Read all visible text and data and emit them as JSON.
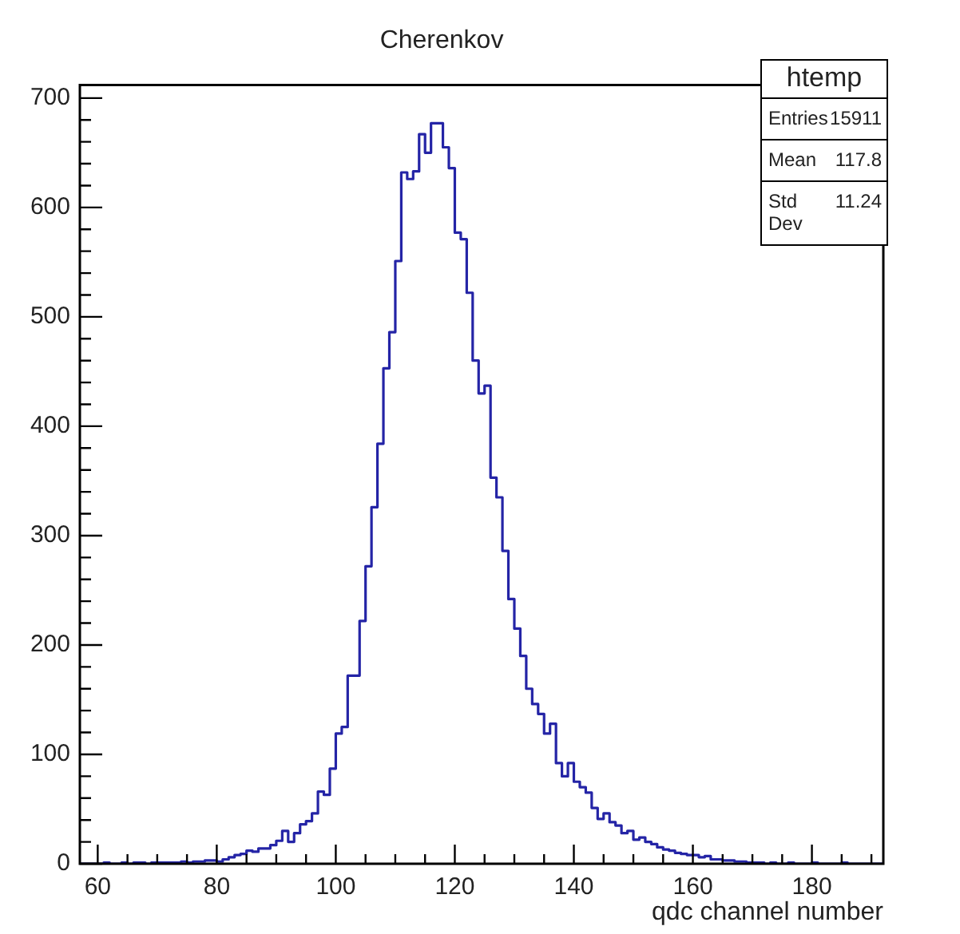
{
  "chart_data": {
    "type": "histogram",
    "title": "Cherenkov",
    "xlabel": "qdc channel number",
    "bins": [
      57,
      58,
      59,
      60,
      61,
      62,
      63,
      64,
      65,
      66,
      67,
      68,
      69,
      70,
      71,
      72,
      73,
      74,
      75,
      76,
      77,
      78,
      79,
      80,
      81,
      82,
      83,
      84,
      85,
      86,
      87,
      88,
      89,
      90,
      91,
      92,
      93,
      94,
      95,
      96,
      97,
      98,
      99,
      100,
      101,
      102,
      103,
      104,
      105,
      106,
      107,
      108,
      109,
      110,
      111,
      112,
      113,
      114,
      115,
      116,
      117,
      118,
      119,
      120,
      121,
      122,
      123,
      124,
      125,
      126,
      127,
      128,
      129,
      130,
      131,
      132,
      133,
      134,
      135,
      136,
      137,
      138,
      139,
      140,
      141,
      142,
      143,
      144,
      145,
      146,
      147,
      148,
      149,
      150,
      151,
      152,
      153,
      154,
      155,
      156,
      157,
      158,
      159,
      160,
      161,
      162,
      163,
      164,
      165,
      166,
      167,
      168,
      169,
      170,
      171,
      172,
      173,
      174,
      175,
      176,
      177,
      178,
      179,
      180,
      181,
      182,
      183,
      184,
      185,
      186,
      187,
      188,
      189,
      190,
      191,
      192
    ],
    "values": [
      0,
      0,
      0,
      0,
      1,
      0,
      0,
      1,
      0,
      1,
      1,
      0,
      1,
      1,
      1,
      1,
      1,
      2,
      1,
      2,
      2,
      3,
      3,
      2,
      4,
      6,
      8,
      9,
      12,
      11,
      14,
      14,
      17,
      21,
      30,
      20,
      28,
      36,
      39,
      46,
      66,
      63,
      87,
      119,
      125,
      172,
      172,
      222,
      272,
      326,
      384,
      453,
      486,
      551,
      632,
      626,
      633,
      667,
      650,
      677,
      677,
      655,
      636,
      577,
      571,
      522,
      460,
      430,
      437,
      353,
      335,
      286,
      242,
      215,
      190,
      160,
      146,
      137,
      119,
      128,
      92,
      80,
      92,
      75,
      70,
      65,
      51,
      41,
      46,
      38,
      35,
      28,
      30,
      22,
      24,
      20,
      18,
      15,
      13,
      12,
      10,
      9,
      8,
      8,
      6,
      7,
      4,
      4,
      3,
      3,
      2,
      2,
      1,
      1,
      1,
      0,
      1,
      0,
      0,
      1,
      0,
      0,
      0,
      1,
      0,
      0,
      0,
      0,
      1,
      0,
      0,
      0,
      0,
      0,
      0
    ],
    "color": "#2424a6",
    "xlim": [
      57,
      192
    ],
    "xticks": [
      60,
      {
        "value": 65,
        "label": null
      },
      {
        "value": 70,
        "label": null
      },
      {
        "value": 75,
        "label": null
      },
      80,
      {
        "value": 85,
        "label": null
      },
      {
        "value": 90,
        "label": null
      },
      {
        "value": 95,
        "label": null
      },
      100,
      {
        "value": 105,
        "label": null
      },
      {
        "value": 110,
        "label": null
      },
      {
        "value": 115,
        "label": null
      },
      120,
      {
        "value": 125,
        "label": null
      },
      {
        "value": 130,
        "label": null
      },
      {
        "value": 135,
        "label": null
      },
      140,
      {
        "value": 145,
        "label": null
      },
      {
        "value": 150,
        "label": null
      },
      {
        "value": 155,
        "label": null
      },
      160,
      {
        "value": 165,
        "label": null
      },
      {
        "value": 170,
        "label": null
      },
      {
        "value": 175,
        "label": null
      },
      180,
      {
        "value": 185,
        "label": null
      },
      {
        "value": 190,
        "label": null
      }
    ],
    "ylim": [
      0,
      712
    ],
    "yticks": [
      0,
      {
        "value": 20,
        "label": null
      },
      {
        "value": 40,
        "label": null
      },
      {
        "value": 60,
        "label": null
      },
      {
        "value": 80,
        "label": null
      },
      100,
      {
        "value": 120,
        "label": null
      },
      {
        "value": 140,
        "label": null
      },
      {
        "value": 160,
        "label": null
      },
      {
        "value": 180,
        "label": null
      },
      200,
      {
        "value": 220,
        "label": null
      },
      {
        "value": 240,
        "label": null
      },
      {
        "value": 260,
        "label": null
      },
      {
        "value": 280,
        "label": null
      },
      300,
      {
        "value": 320,
        "label": null
      },
      {
        "value": 340,
        "label": null
      },
      {
        "value": 360,
        "label": null
      },
      {
        "value": 380,
        "label": null
      },
      400,
      {
        "value": 420,
        "label": null
      },
      {
        "value": 440,
        "label": null
      },
      {
        "value": 460,
        "label": null
      },
      {
        "value": 480,
        "label": null
      },
      500,
      {
        "value": 520,
        "label": null
      },
      {
        "value": 540,
        "label": null
      },
      {
        "value": 560,
        "label": null
      },
      {
        "value": 580,
        "label": null
      },
      600,
      {
        "value": 620,
        "label": null
      },
      {
        "value": 640,
        "label": null
      },
      {
        "value": 660,
        "label": null
      },
      {
        "value": 680,
        "label": null
      },
      700
    ],
    "grid": false,
    "annotations": [
      "htemp",
      "Entries",
      "15911",
      "Mean",
      "117.8",
      "Std Dev",
      "11.24"
    ]
  }
}
